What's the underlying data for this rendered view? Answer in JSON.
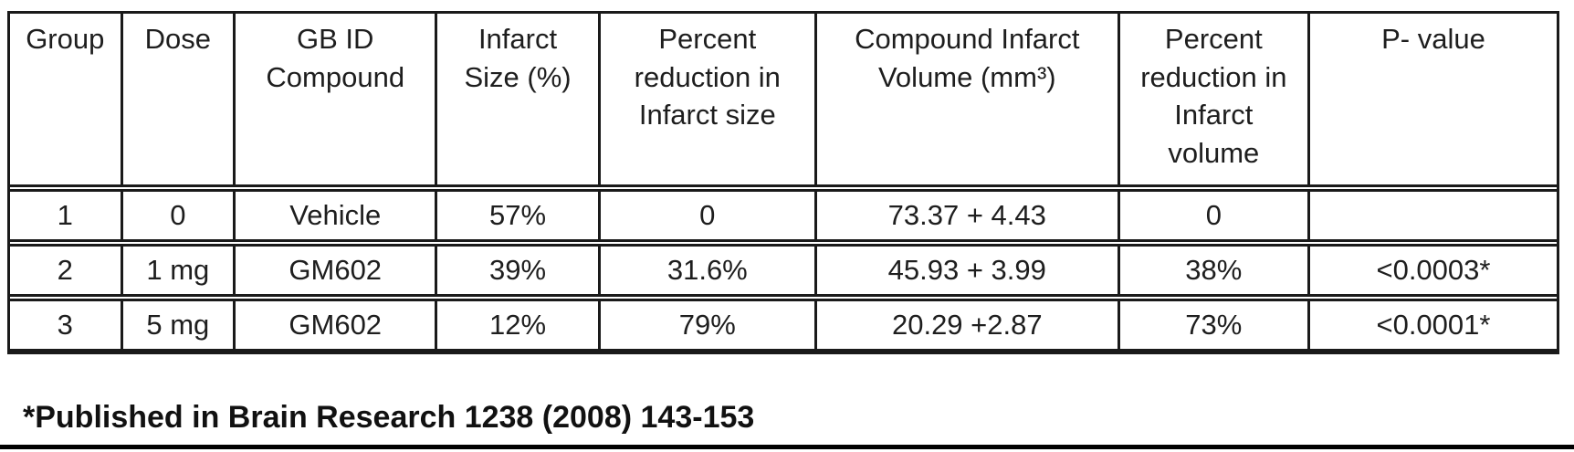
{
  "table": {
    "columns": [
      {
        "label": "Group"
      },
      {
        "label": "Dose"
      },
      {
        "label": "GB ID\nCompound"
      },
      {
        "label": "Infarct\nSize (%)"
      },
      {
        "label": "Percent\nreduction in\nInfarct size"
      },
      {
        "label": "Compound Infarct\nVolume (mm³)"
      },
      {
        "label": "Percent\nreduction in\nInfarct\nvolume"
      },
      {
        "label": "P- value"
      }
    ],
    "rows": [
      [
        "1",
        "0",
        "Vehicle",
        "57%",
        "0",
        "73.37 + 4.43",
        "0",
        ""
      ],
      [
        "2",
        "1 mg",
        "GM602",
        "39%",
        "31.6%",
        "45.93 + 3.99",
        "38%",
        "<0.0003*"
      ],
      [
        "3",
        "5 mg",
        "GM602",
        "12%",
        "79%",
        "20.29 +2.87",
        "73%",
        "<0.0001*"
      ]
    ]
  },
  "footnote": "*Published in Brain Research 1238 (2008) 143-153",
  "colors": {
    "border": "#1a1a1a",
    "text": "#1e1e1e",
    "background": "#ffffff",
    "bottom_rule": "#000000"
  }
}
